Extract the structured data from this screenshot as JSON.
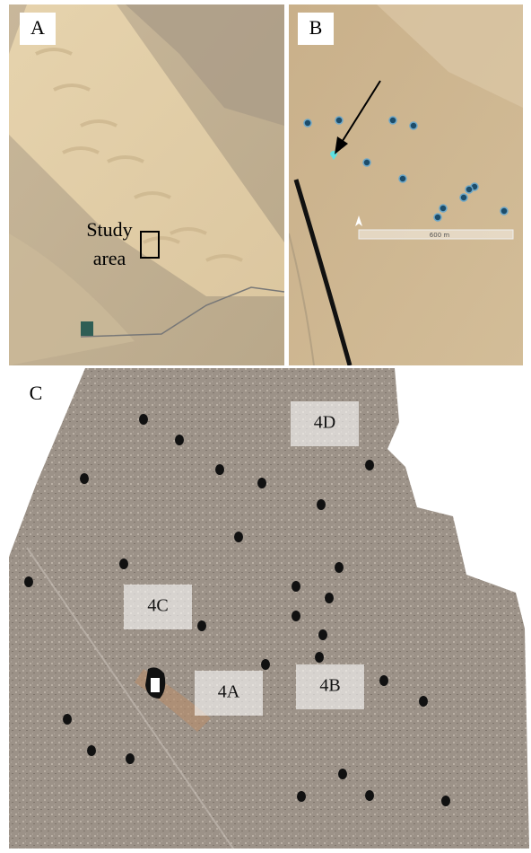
{
  "panels": [
    {
      "label": "A",
      "annotation": [
        "Study",
        "area"
      ]
    },
    {
      "label": "B",
      "scale_label": "600 m"
    },
    {
      "label": "C",
      "regions": [
        "4D",
        "4C",
        "4A",
        "4B"
      ]
    }
  ]
}
